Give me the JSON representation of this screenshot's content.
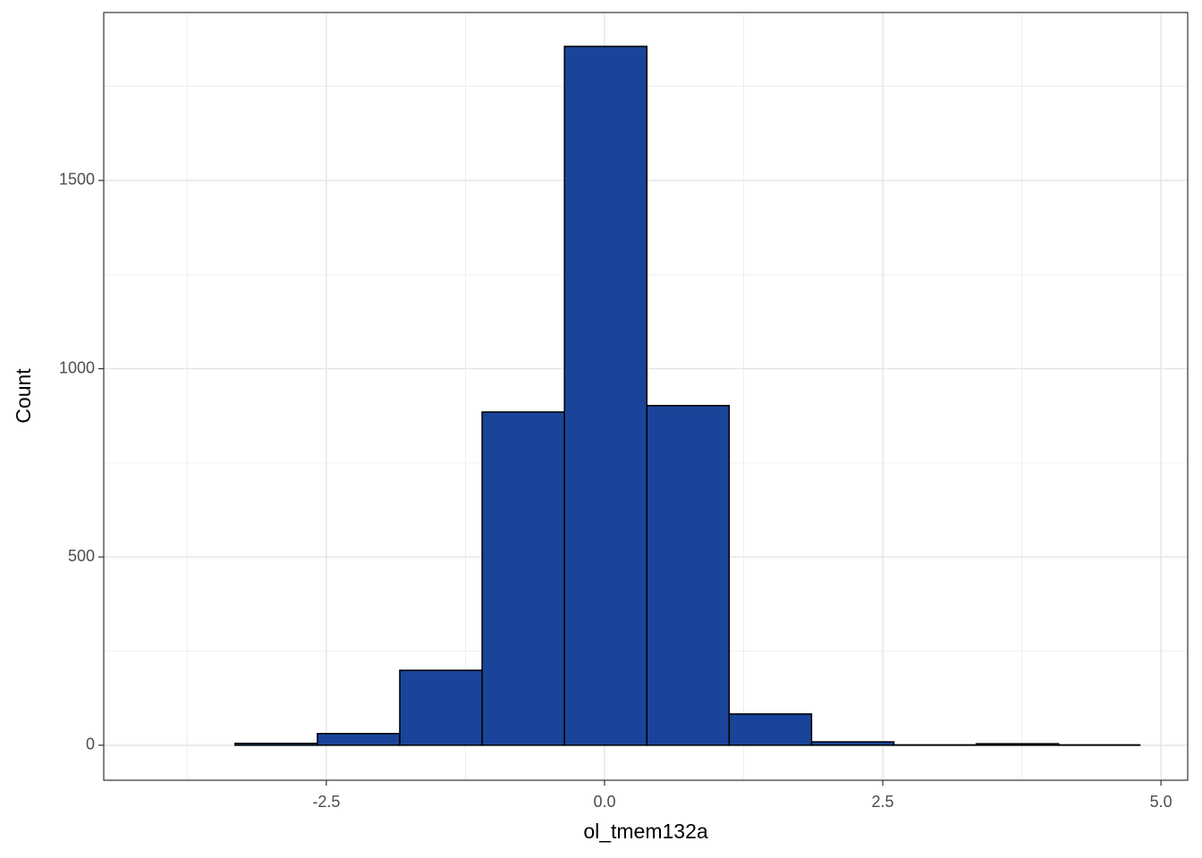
{
  "chart_data": {
    "type": "histogram",
    "x_label": "ol_tmem132a",
    "y_label": "Count",
    "bins": [
      -4.06,
      -3.32,
      -2.58,
      -1.84,
      -1.1,
      -0.36,
      0.38,
      1.12,
      1.86,
      2.6,
      3.34,
      4.08,
      4.81
    ],
    "values": [
      0,
      5,
      31,
      199,
      885,
      1856,
      902,
      83,
      9,
      1,
      4,
      1
    ],
    "color": "#1a4499",
    "edge_color": "#000000",
    "xlim": [
      -4.5,
      5.24
    ],
    "ylim": [
      -93,
      1946
    ],
    "xticks": [
      -2.5,
      {
        "value": 0,
        "label": "0.0"
      },
      2.5,
      {
        "value": 5,
        "label": "5.0"
      }
    ],
    "yticks": [
      0,
      500,
      1000,
      1500
    ],
    "x_minor_ticks": [
      -3.75,
      -1.25,
      1.25,
      3.75
    ],
    "y_minor_ticks": [
      250,
      750,
      1250,
      1750
    ],
    "grid": true
  }
}
